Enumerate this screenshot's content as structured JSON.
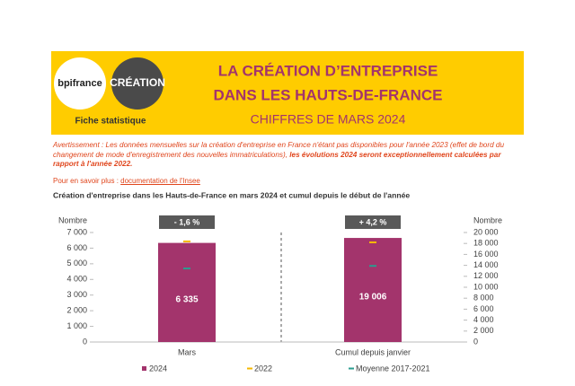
{
  "header": {
    "logo_left": "bpifrance",
    "logo_right": "CRÉATION",
    "subtitle": "Fiche statistique",
    "title_line1": "LA CRÉATION D’ENTREPRISE",
    "title_line2": "DANS LES HAUTS-DE-FRANCE",
    "title_line3": "CHIFFRES DE MARS 2024"
  },
  "notice": {
    "text": "Avertissement : Les données mensuelles sur la création d'entreprise en France n'étant pas disponibles pour l'année 2023 (effet de bord du changement de mode d'enregistrement des nouvelles immatriculations), ",
    "bold": "les évolutions 2024 seront exceptionnellement calculées par rapport à l'année 2022."
  },
  "more": {
    "prefix": "Pour en savoir plus : ",
    "link": "documentation de l'Insee"
  },
  "chart_data": {
    "type": "bar",
    "title": "Création d'entreprise dans les Hauts-de-France  en mars 2024 et cumul depuis le début de l'année",
    "categories": [
      "Mars",
      "Cumul depuis janvier"
    ],
    "category_axes": [
      "y",
      "y2"
    ],
    "change_labels": [
      "- 1,6 %",
      "+ 4,2 %"
    ],
    "ylabel": "Nombre",
    "y2label": "Nombre",
    "ylim": [
      0,
      7000
    ],
    "yticks": [
      0,
      {
        "value": 1000,
        "label": "1 000"
      },
      {
        "value": 2000,
        "label": "2 000"
      },
      {
        "value": 3000,
        "label": "3 000"
      },
      {
        "value": 4000,
        "label": "4 000"
      },
      {
        "value": 5000,
        "label": "5 000"
      },
      {
        "value": 6000,
        "label": "6 000"
      },
      {
        "value": 7000,
        "label": "7 000"
      }
    ],
    "y2lim": [
      0,
      20000
    ],
    "y2ticks": [
      0,
      {
        "value": 2000,
        "label": "2 000"
      },
      {
        "value": 4000,
        "label": "4 000"
      },
      {
        "value": 6000,
        "label": "6 000"
      },
      {
        "value": 8000,
        "label": "8 000"
      },
      {
        "value": 10000,
        "label": "10 000"
      },
      {
        "value": 12000,
        "label": "12 000"
      },
      {
        "value": 14000,
        "label": "14 000"
      },
      {
        "value": 16000,
        "label": "16 000"
      },
      {
        "value": 18000,
        "label": "18 000"
      },
      {
        "value": 20000,
        "label": "20 000"
      }
    ],
    "grid": false,
    "series": [
      {
        "name": "2024",
        "color": "#a3346c",
        "kind": "bar",
        "values": [
          6335,
          19006
        ],
        "value_labels": [
          "6 335",
          "19 006"
        ]
      },
      {
        "name": "2022",
        "color": "#f5b800",
        "kind": "marker",
        "values": [
          6430,
          18200
        ]
      },
      {
        "name": "Moyenne 2017-2021",
        "color": "#2a9d8f",
        "kind": "marker",
        "values": [
          4700,
          13900
        ]
      }
    ]
  }
}
